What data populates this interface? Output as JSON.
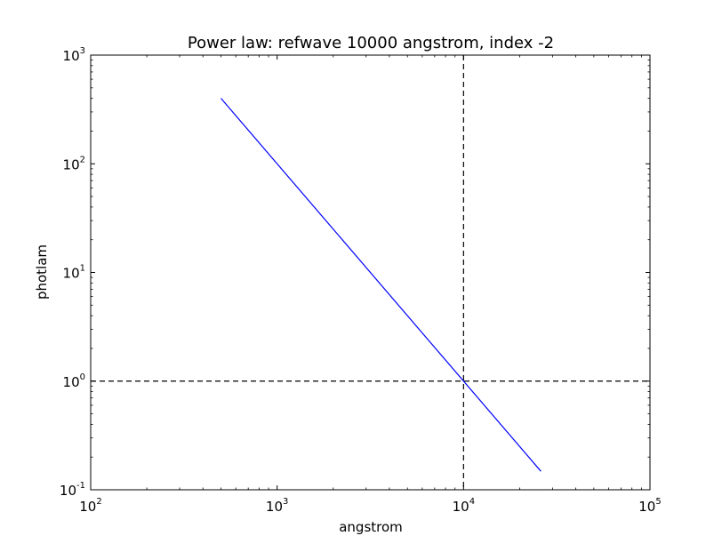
{
  "chart_data": {
    "type": "line",
    "title": "Power law: refwave 10000 angstrom, index -2",
    "xlabel": "angstrom",
    "ylabel": "photlam",
    "xscale": "log",
    "yscale": "log",
    "xlim": [
      100,
      100000
    ],
    "ylim": [
      0.1,
      1000
    ],
    "grid": false,
    "x_ticks": [
      {
        "base": "10",
        "exp": "2",
        "value": 100
      },
      {
        "base": "10",
        "exp": "3",
        "value": 1000
      },
      {
        "base": "10",
        "exp": "4",
        "value": 10000
      },
      {
        "base": "10",
        "exp": "5",
        "value": 100000
      }
    ],
    "y_ticks": [
      {
        "base": "10",
        "exp": "-1",
        "value": 0.1
      },
      {
        "base": "10",
        "exp": "0",
        "value": 1
      },
      {
        "base": "10",
        "exp": "1",
        "value": 10
      },
      {
        "base": "10",
        "exp": "2",
        "value": 100
      },
      {
        "base": "10",
        "exp": "3",
        "value": 1000
      }
    ],
    "series": [
      {
        "color": "#0000ff",
        "x": [
          500,
          26000
        ],
        "y": [
          400,
          0.148
        ]
      }
    ],
    "reference_lines": [
      {
        "orientation": "vertical",
        "value": 10000,
        "style": "dashed",
        "color": "#000000"
      },
      {
        "orientation": "horizontal",
        "value": 1,
        "style": "dashed",
        "color": "#000000"
      }
    ]
  }
}
